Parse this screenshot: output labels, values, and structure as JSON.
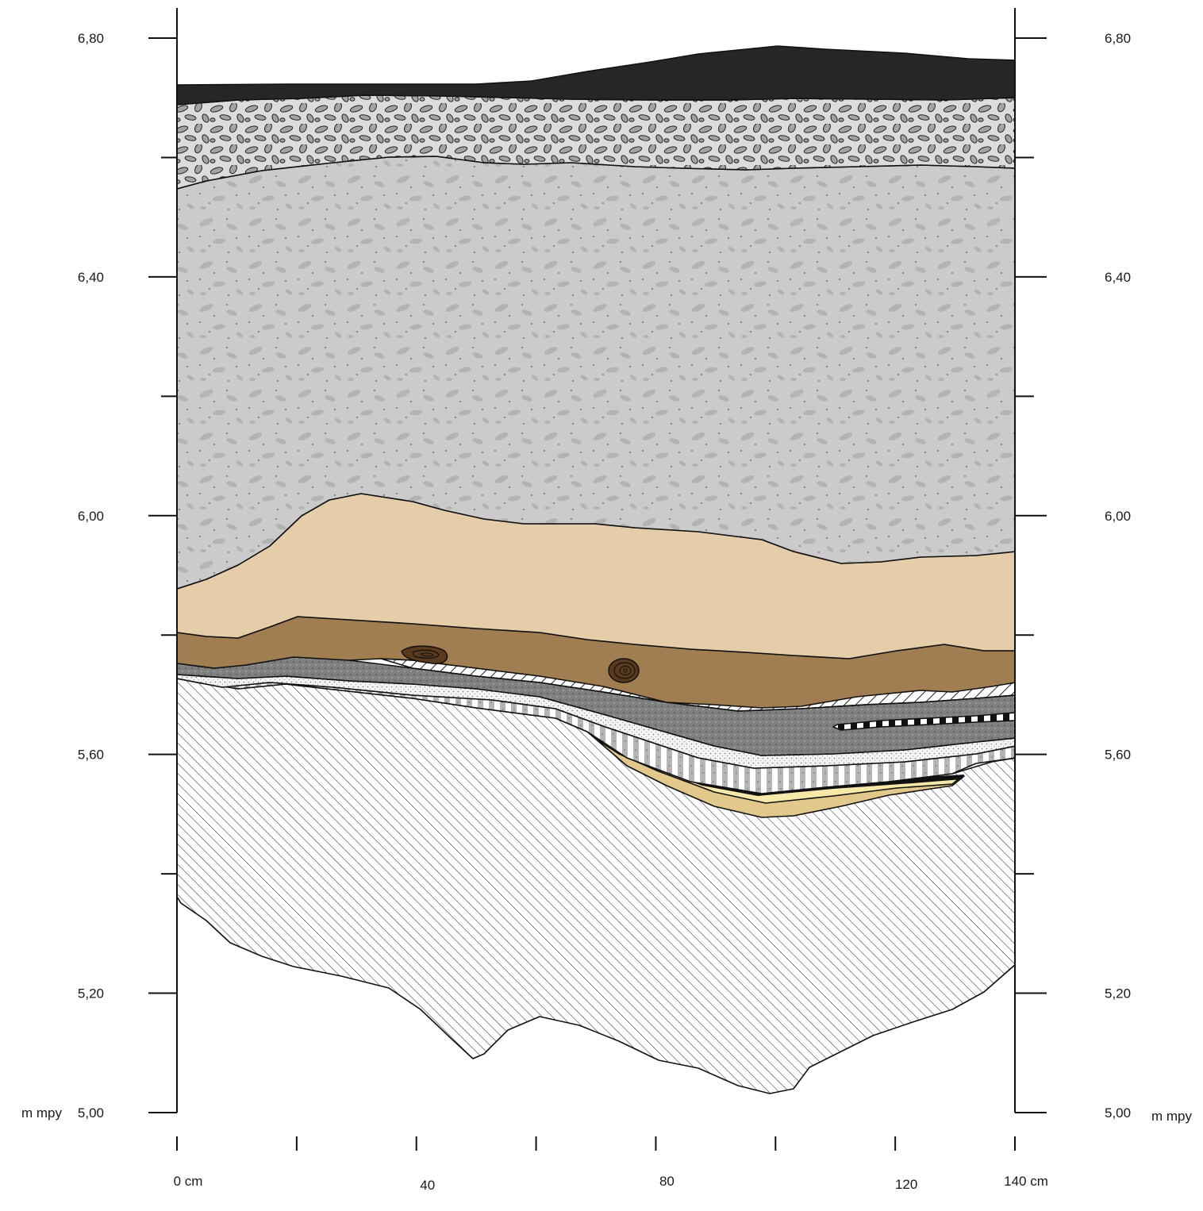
{
  "left_axis": {
    "unit": "m mpy",
    "ticks": [
      {
        "value": 6.8,
        "label": "6,80"
      },
      {
        "value": 6.4,
        "label": "6,40"
      },
      {
        "value": 6.0,
        "label": "6,00"
      },
      {
        "value": 5.6,
        "label": "5,60"
      },
      {
        "value": 5.2,
        "label": "5,20"
      },
      {
        "value": 5.0,
        "label": "5,00"
      }
    ],
    "minor_ticks": [
      6.6,
      6.2,
      5.8,
      5.4
    ]
  },
  "right_axis": {
    "unit": "m mpy",
    "ticks": [
      {
        "value": 6.8,
        "label": "6,80"
      },
      {
        "value": 6.4,
        "label": "6,40"
      },
      {
        "value": 6.0,
        "label": "6,00"
      },
      {
        "value": 5.6,
        "label": "5,60"
      },
      {
        "value": 5.2,
        "label": "5,20"
      },
      {
        "value": 5.0,
        "label": "5,00"
      }
    ],
    "minor_ticks": [
      6.6,
      6.2,
      5.8,
      5.4
    ]
  },
  "bottom_axis": {
    "ticks": [
      0,
      20,
      40,
      60,
      80,
      100,
      120,
      140
    ],
    "labels": [
      {
        "value": 0,
        "label": "0 cm"
      },
      {
        "value": 40,
        "label": "40"
      },
      {
        "value": 80,
        "label": "80"
      },
      {
        "value": 120,
        "label": "120"
      },
      {
        "value": 140,
        "label": "140 cm"
      }
    ]
  },
  "layers": [
    {
      "id": "asphalt",
      "color": "#262626"
    },
    {
      "id": "gravel",
      "color": "#dcdcdc"
    },
    {
      "id": "sandy-fill",
      "color": "#cbcbcb"
    },
    {
      "id": "light-sand",
      "color": "#e6cdaa"
    },
    {
      "id": "brown-soil",
      "color": "#a07e52"
    },
    {
      "id": "gray-bands",
      "color": "#8c8c8c"
    },
    {
      "id": "yellow-lens",
      "color": "#e2c98b"
    },
    {
      "id": "bedrock-hatch",
      "color": "#ffffff"
    }
  ]
}
